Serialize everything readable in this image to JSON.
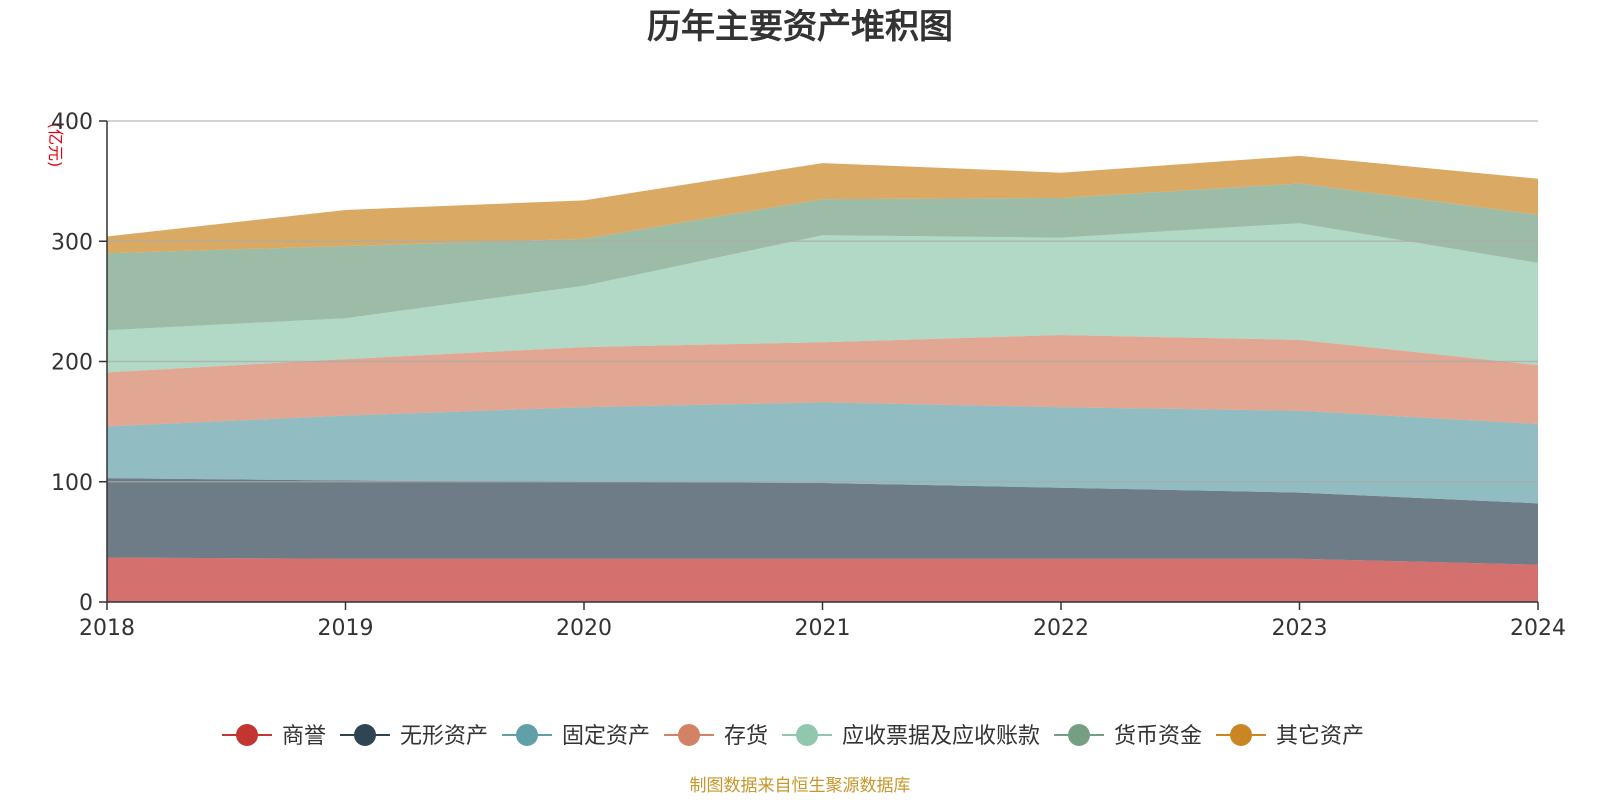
{
  "chart_data": {
    "type": "area",
    "stacked": true,
    "title": "历年主要资产堆积图",
    "unit_label": "(亿元)",
    "unit_color": "#e60012",
    "x": [
      "2018",
      "2019",
      "2020",
      "2021",
      "2022",
      "2023",
      "2024"
    ],
    "ylim": [
      0,
      400
    ],
    "yticks": [
      "0",
      "100",
      "200",
      "300",
      "400"
    ],
    "grid": true,
    "legend_position": "bottom",
    "series": [
      {
        "name": "商誉",
        "color": "#c23531",
        "values": [
          37,
          36,
          36,
          36,
          36,
          36,
          31
        ]
      },
      {
        "name": "无形资产",
        "color": "#2f4554",
        "values": [
          66,
          65,
          64,
          63,
          59,
          55,
          51
        ]
      },
      {
        "name": "固定资产",
        "color": "#61a0a8",
        "values": [
          43,
          54,
          62,
          67,
          67,
          68,
          66
        ]
      },
      {
        "name": "存货",
        "color": "#d48265",
        "values": [
          45,
          47,
          50,
          50,
          60,
          59,
          49
        ]
      },
      {
        "name": "应收票据及应收账款",
        "color": "#91c7ae",
        "values": [
          35,
          34,
          51,
          89,
          81,
          97,
          85
        ]
      },
      {
        "name": "货币资金",
        "color": "#749f83",
        "values": [
          64,
          60,
          39,
          30,
          33,
          33,
          40
        ]
      },
      {
        "name": "其它资产",
        "color": "#ca8622",
        "values": [
          14,
          30,
          32,
          30,
          21,
          23,
          30
        ]
      }
    ]
  },
  "source_text": "制图数据来自恒生聚源数据库",
  "source_color": "#c9962a"
}
